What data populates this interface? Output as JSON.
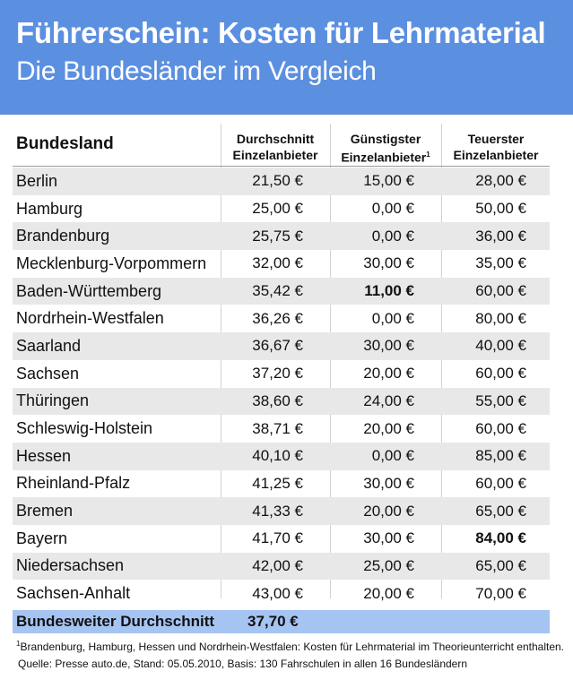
{
  "header": {
    "title": "Führerschein: Kosten für Lehrmaterial",
    "subtitle": "Die Bundesländer im Vergleich"
  },
  "colors": {
    "header_bg": "#5b8fe0",
    "stripe": "#e8e8e8",
    "total_bg": "#a6c4f2"
  },
  "chart_data": {
    "type": "table",
    "columns": [
      {
        "line1": "Bundesland",
        "line2": "",
        "sup": ""
      },
      {
        "line1": "Durchschnitt",
        "line2": "Einzelanbieter",
        "sup": ""
      },
      {
        "line1": "Günstigster",
        "line2": "Einzelanbieter",
        "sup": "1"
      },
      {
        "line1": "Teuerster",
        "line2": "Einzelanbieter",
        "sup": ""
      }
    ],
    "rows": [
      {
        "name": "Berlin",
        "avg": "21,50 €",
        "min": "15,00 €",
        "max": "28,00 €"
      },
      {
        "name": "Hamburg",
        "avg": "25,00 €",
        "min": "0,00 €",
        "max": "50,00 €"
      },
      {
        "name": "Brandenburg",
        "avg": "25,75 €",
        "min": "0,00 €",
        "max": "36,00 €"
      },
      {
        "name": "Mecklenburg-Vorpommern",
        "avg": "32,00 €",
        "min": "30,00 €",
        "max": "35,00 €"
      },
      {
        "name": "Baden-Württemberg",
        "avg": "35,42 €",
        "min": "11,00 €",
        "max": "60,00 €",
        "bold": "min"
      },
      {
        "name": "Nordrhein-Westfalen",
        "avg": "36,26 €",
        "min": "0,00 €",
        "max": "80,00 €"
      },
      {
        "name": "Saarland",
        "avg": "36,67 €",
        "min": "30,00 €",
        "max": "40,00 €"
      },
      {
        "name": "Sachsen",
        "avg": "37,20 €",
        "min": "20,00 €",
        "max": "60,00 €"
      },
      {
        "name": "Thüringen",
        "avg": "38,60 €",
        "min": "24,00 €",
        "max": "55,00 €"
      },
      {
        "name": "Schleswig-Holstein",
        "avg": "38,71 €",
        "min": "20,00 €",
        "max": "60,00 €"
      },
      {
        "name": "Hessen",
        "avg": "40,10 €",
        "min": "0,00 €",
        "max": "85,00 €"
      },
      {
        "name": "Rheinland-Pfalz",
        "avg": "41,25 €",
        "min": "30,00 €",
        "max": "60,00 €"
      },
      {
        "name": "Bremen",
        "avg": "41,33 €",
        "min": "20,00 €",
        "max": "65,00 €"
      },
      {
        "name": "Bayern",
        "avg": "41,70 €",
        "min": "30,00 €",
        "max": "84,00 €",
        "bold": "max"
      },
      {
        "name": "Niedersachsen",
        "avg": "42,00 €",
        "min": "25,00 €",
        "max": "65,00 €"
      },
      {
        "name": "Sachsen-Anhalt",
        "avg": "43,00 €",
        "min": "20,00 €",
        "max": "70,00 €"
      }
    ],
    "total": {
      "label": "Bundesweiter Durchschnitt",
      "value": "37,70 €"
    }
  },
  "footnotes": {
    "note_mark": "1",
    "note": "Brandenburg, Hamburg, Hessen und Nordrhein-Westfalen: Kosten für Lehrmaterial im Theorieunterricht enthalten.",
    "source": "Quelle: Presse auto.de, Stand: 05.05.2010, Basis: 130 Fahrschulen in allen 16 Bundesländern"
  }
}
